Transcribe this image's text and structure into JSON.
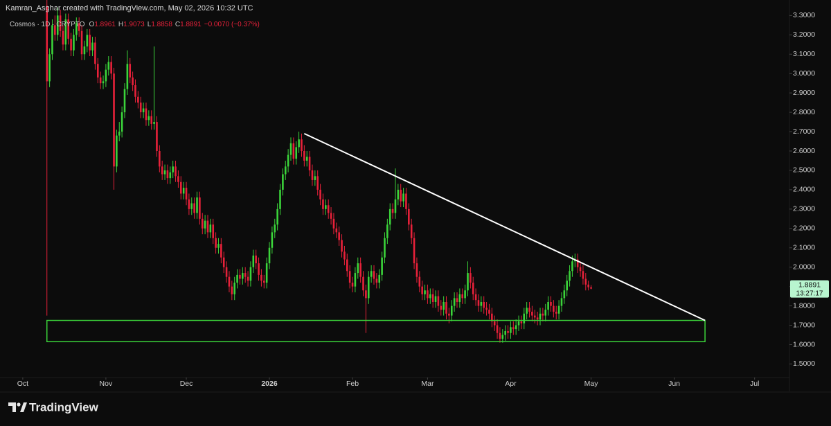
{
  "header": {
    "credit": "Kamran_Asghar created with TradingView.com, May 02, 2026 10:32 UTC"
  },
  "footer": {
    "brand": "TradingView"
  },
  "chart_data": {
    "type": "candlestick",
    "symbol": "Cosmos · 1D · CRYPTO",
    "ohlc_letters": [
      "O",
      "H",
      "L",
      "C"
    ],
    "change": "−0.0070 (−0.37%)",
    "countdown": "13:27:17",
    "up_color": "#3bd43a",
    "down_color": "#e8213a",
    "grid": false,
    "xlim": [
      -8.5,
      286
    ],
    "xticks": [
      {
        "value": 0,
        "label": "Oct"
      },
      {
        "value": 31,
        "label": "Nov"
      },
      {
        "value": 61,
        "label": "Dec"
      },
      {
        "value": 92,
        "label": "2026"
      },
      {
        "value": 123,
        "label": "Feb"
      },
      {
        "value": 151,
        "label": "Mar"
      },
      {
        "value": 182,
        "label": "Apr"
      },
      {
        "value": 212,
        "label": "May"
      },
      {
        "value": 243,
        "label": "Jun"
      },
      {
        "value": 273,
        "label": "Jul"
      }
    ],
    "ylim": [
      1.43,
      3.38
    ],
    "yticks": [
      {
        "value": 1.5,
        "label": "1.5000"
      },
      {
        "value": 1.6,
        "label": "1.6000"
      },
      {
        "value": 1.7,
        "label": "1.7000"
      },
      {
        "value": 1.8,
        "label": "1.8000"
      },
      {
        "value": 1.9,
        "label": "1.9000"
      },
      {
        "value": 2.0,
        "label": "2.0000"
      },
      {
        "value": 2.1,
        "label": "2.1000"
      },
      {
        "value": 2.2,
        "label": "2.2000"
      },
      {
        "value": 2.3,
        "label": "2.3000"
      },
      {
        "value": 2.4,
        "label": "2.4000"
      },
      {
        "value": 2.5,
        "label": "2.5000"
      },
      {
        "value": 2.6,
        "label": "2.6000"
      },
      {
        "value": 2.7,
        "label": "2.7000"
      },
      {
        "value": 2.8,
        "label": "2.8000"
      },
      {
        "value": 2.9,
        "label": "2.9000"
      },
      {
        "value": 3.0,
        "label": "3.0000"
      },
      {
        "value": 3.1,
        "label": "3.1000"
      },
      {
        "value": 3.2,
        "label": "3.2000"
      },
      {
        "value": 3.3,
        "label": "3.3000"
      }
    ],
    "trendline": {
      "color": "#ffffff",
      "x": [
        105,
        254.5
      ],
      "y": [
        2.69,
        1.725
      ]
    },
    "zone": {
      "color": "#3bd43a",
      "x": [
        9,
        254.5
      ],
      "y": [
        1.615,
        1.725
      ]
    },
    "x": [
      9,
      10,
      11,
      12,
      13,
      14,
      15,
      16,
      17,
      18,
      19,
      20,
      21,
      22,
      23,
      24,
      25,
      26,
      27,
      28,
      29,
      30,
      31,
      32,
      33,
      34,
      35,
      36,
      37,
      38,
      39,
      40,
      41,
      42,
      43,
      44,
      45,
      46,
      47,
      48,
      49,
      50,
      51,
      52,
      53,
      54,
      55,
      56,
      57,
      58,
      59,
      60,
      61,
      62,
      63,
      64,
      65,
      66,
      67,
      68,
      69,
      70,
      71,
      72,
      73,
      74,
      75,
      76,
      77,
      78,
      79,
      80,
      81,
      82,
      83,
      84,
      85,
      86,
      87,
      88,
      89,
      90,
      91,
      92,
      93,
      94,
      95,
      96,
      97,
      98,
      99,
      100,
      101,
      102,
      103,
      104,
      105,
      106,
      107,
      108,
      109,
      110,
      111,
      112,
      113,
      114,
      115,
      116,
      117,
      118,
      119,
      120,
      121,
      122,
      123,
      124,
      125,
      126,
      127,
      128,
      129,
      130,
      131,
      132,
      133,
      134,
      135,
      136,
      137,
      138,
      139,
      140,
      141,
      142,
      143,
      144,
      145,
      146,
      147,
      148,
      149,
      150,
      151,
      152,
      153,
      154,
      155,
      156,
      157,
      158,
      159,
      160,
      161,
      162,
      163,
      164,
      165,
      166,
      167,
      168,
      169,
      170,
      171,
      172,
      173,
      174,
      175,
      176,
      177,
      178,
      179,
      180,
      181,
      182,
      183,
      184,
      185,
      186,
      187,
      188,
      189,
      190,
      191,
      192,
      193,
      194,
      195,
      196,
      197,
      198,
      199,
      200,
      201,
      202,
      203,
      204,
      205,
      206,
      207,
      208,
      209,
      210,
      211,
      212
    ],
    "candles": [
      [
        3.35,
        3.38,
        1.75,
        2.96
      ],
      [
        2.96,
        3.13,
        2.93,
        3.1
      ],
      [
        3.1,
        3.28,
        3.07,
        3.25
      ],
      [
        3.25,
        3.3,
        3.17,
        3.2
      ],
      [
        3.2,
        3.34,
        3.17,
        3.3
      ],
      [
        3.3,
        3.33,
        3.19,
        3.22
      ],
      [
        3.22,
        3.25,
        3.12,
        3.15
      ],
      [
        3.15,
        3.31,
        3.12,
        3.28
      ],
      [
        3.28,
        3.31,
        3.15,
        3.18
      ],
      [
        3.18,
        3.21,
        3.09,
        3.12
      ],
      [
        3.12,
        3.23,
        3.09,
        3.2
      ],
      [
        3.2,
        3.29,
        3.17,
        3.26
      ],
      [
        3.26,
        3.29,
        3.19,
        3.22
      ],
      [
        3.22,
        3.25,
        3.07,
        3.1
      ],
      [
        3.1,
        3.17,
        3.07,
        3.14
      ],
      [
        3.14,
        3.23,
        3.11,
        3.2
      ],
      [
        3.2,
        3.23,
        3.09,
        3.12
      ],
      [
        3.12,
        3.19,
        3.09,
        3.16
      ],
      [
        3.16,
        3.19,
        3.02,
        3.05
      ],
      [
        3.05,
        3.08,
        2.95,
        2.98
      ],
      [
        2.98,
        3.01,
        2.92,
        2.95
      ],
      [
        2.95,
        2.99,
        2.92,
        2.96
      ],
      [
        2.96,
        3.05,
        2.93,
        3.02
      ],
      [
        3.02,
        3.09,
        2.99,
        3.06
      ],
      [
        3.06,
        3.09,
        2.97,
        3.0
      ],
      [
        3.0,
        3.03,
        2.4,
        2.52
      ],
      [
        2.52,
        2.71,
        2.49,
        2.68
      ],
      [
        2.68,
        2.75,
        2.65,
        2.7
      ],
      [
        2.7,
        2.83,
        2.67,
        2.8
      ],
      [
        2.8,
        2.95,
        2.77,
        2.92
      ],
      [
        2.92,
        3.12,
        2.89,
        3.05
      ],
      [
        3.05,
        3.08,
        2.95,
        2.98
      ],
      [
        2.98,
        3.01,
        2.91,
        2.94
      ],
      [
        2.94,
        2.97,
        2.85,
        2.88
      ],
      [
        2.88,
        2.91,
        2.82,
        2.85
      ],
      [
        2.85,
        2.88,
        2.77,
        2.8
      ],
      [
        2.8,
        2.85,
        2.77,
        2.82
      ],
      [
        2.82,
        2.85,
        2.73,
        2.76
      ],
      [
        2.76,
        2.81,
        2.73,
        2.78
      ],
      [
        2.78,
        2.81,
        2.71,
        2.74
      ],
      [
        2.74,
        3.14,
        2.71,
        2.75
      ],
      [
        2.75,
        2.78,
        2.57,
        2.6
      ],
      [
        2.6,
        2.63,
        2.49,
        2.52
      ],
      [
        2.52,
        2.55,
        2.45,
        2.48
      ],
      [
        2.48,
        2.53,
        2.45,
        2.5
      ],
      [
        2.5,
        2.53,
        2.43,
        2.46
      ],
      [
        2.46,
        2.52,
        2.43,
        2.49
      ],
      [
        2.49,
        2.55,
        2.46,
        2.52
      ],
      [
        2.52,
        2.55,
        2.44,
        2.47
      ],
      [
        2.47,
        2.5,
        2.41,
        2.44
      ],
      [
        2.44,
        2.47,
        2.35,
        2.38
      ],
      [
        2.38,
        2.44,
        2.35,
        2.41
      ],
      [
        2.41,
        2.44,
        2.32,
        2.35
      ],
      [
        2.35,
        2.38,
        2.27,
        2.3
      ],
      [
        2.3,
        2.36,
        2.27,
        2.33
      ],
      [
        2.33,
        2.36,
        2.25,
        2.28
      ],
      [
        2.28,
        2.39,
        2.25,
        2.36
      ],
      [
        2.36,
        2.39,
        2.22,
        2.25
      ],
      [
        2.25,
        2.28,
        2.17,
        2.2
      ],
      [
        2.2,
        2.27,
        2.17,
        2.24
      ],
      [
        2.24,
        2.27,
        2.15,
        2.18
      ],
      [
        2.18,
        2.25,
        2.15,
        2.22
      ],
      [
        2.22,
        2.25,
        2.12,
        2.15
      ],
      [
        2.15,
        2.18,
        2.07,
        2.1
      ],
      [
        2.1,
        2.15,
        2.07,
        2.12
      ],
      [
        2.12,
        2.15,
        2.02,
        2.05
      ],
      [
        2.05,
        2.08,
        1.97,
        2.0
      ],
      [
        2.0,
        2.03,
        1.92,
        1.95
      ],
      [
        1.95,
        1.98,
        1.87,
        1.9
      ],
      [
        1.9,
        1.93,
        1.83,
        1.86
      ],
      [
        1.86,
        1.95,
        1.83,
        1.92
      ],
      [
        1.92,
        1.99,
        1.89,
        1.96
      ],
      [
        1.96,
        1.99,
        1.91,
        1.94
      ],
      [
        1.94,
        2.0,
        1.91,
        1.97
      ],
      [
        1.97,
        2.0,
        1.92,
        1.95
      ],
      [
        1.95,
        1.98,
        1.9,
        1.93
      ],
      [
        1.93,
        2.03,
        1.9,
        2.0
      ],
      [
        2.0,
        2.09,
        1.97,
        2.06
      ],
      [
        2.06,
        2.09,
        1.99,
        2.02
      ],
      [
        2.02,
        2.05,
        1.93,
        1.96
      ],
      [
        1.96,
        1.99,
        1.9,
        1.93
      ],
      [
        1.93,
        1.96,
        1.89,
        1.92
      ],
      [
        1.92,
        2.05,
        1.89,
        2.02
      ],
      [
        2.02,
        2.13,
        1.99,
        2.1
      ],
      [
        2.1,
        2.21,
        2.07,
        2.18
      ],
      [
        2.18,
        2.25,
        2.15,
        2.22
      ],
      [
        2.22,
        2.33,
        2.19,
        2.3
      ],
      [
        2.3,
        2.43,
        2.27,
        2.4
      ],
      [
        2.4,
        2.51,
        2.37,
        2.48
      ],
      [
        2.48,
        2.55,
        2.45,
        2.52
      ],
      [
        2.52,
        2.61,
        2.49,
        2.58
      ],
      [
        2.58,
        2.67,
        2.55,
        2.64
      ],
      [
        2.64,
        2.67,
        2.53,
        2.56
      ],
      [
        2.56,
        2.65,
        2.53,
        2.62
      ],
      [
        2.62,
        2.7,
        2.59,
        2.66
      ],
      [
        2.66,
        2.69,
        2.57,
        2.6
      ],
      [
        2.6,
        2.63,
        2.52,
        2.55
      ],
      [
        2.55,
        2.6,
        2.52,
        2.57
      ],
      [
        2.57,
        2.6,
        2.47,
        2.5
      ],
      [
        2.5,
        2.53,
        2.42,
        2.45
      ],
      [
        2.45,
        2.5,
        2.42,
        2.47
      ],
      [
        2.47,
        2.5,
        2.37,
        2.4
      ],
      [
        2.4,
        2.43,
        2.32,
        2.35
      ],
      [
        2.35,
        2.38,
        2.27,
        2.3
      ],
      [
        2.3,
        2.35,
        2.27,
        2.32
      ],
      [
        2.32,
        2.35,
        2.25,
        2.28
      ],
      [
        2.28,
        2.31,
        2.22,
        2.25
      ],
      [
        2.25,
        2.28,
        2.17,
        2.2
      ],
      [
        2.2,
        2.23,
        2.15,
        2.18
      ],
      [
        2.18,
        2.21,
        2.11,
        2.14
      ],
      [
        2.14,
        2.17,
        2.05,
        2.08
      ],
      [
        2.08,
        2.11,
        2.01,
        2.04
      ],
      [
        2.04,
        2.07,
        1.95,
        1.98
      ],
      [
        1.98,
        2.01,
        1.89,
        1.92
      ],
      [
        1.92,
        1.95,
        1.87,
        1.9
      ],
      [
        1.9,
        2.0,
        1.87,
        1.97
      ],
      [
        1.97,
        2.05,
        1.94,
        2.02
      ],
      [
        2.02,
        2.05,
        1.92,
        1.95
      ],
      [
        1.95,
        1.98,
        1.85,
        1.88
      ],
      [
        1.88,
        1.91,
        1.66,
        1.84
      ],
      [
        1.84,
        1.98,
        1.81,
        1.95
      ],
      [
        1.95,
        2.01,
        1.92,
        1.98
      ],
      [
        1.98,
        2.01,
        1.91,
        1.94
      ],
      [
        1.94,
        1.97,
        1.89,
        1.92
      ],
      [
        1.92,
        1.99,
        1.89,
        1.96
      ],
      [
        1.96,
        2.08,
        1.93,
        2.05
      ],
      [
        2.05,
        2.18,
        2.02,
        2.15
      ],
      [
        2.15,
        2.25,
        2.12,
        2.22
      ],
      [
        2.22,
        2.33,
        2.19,
        2.3
      ],
      [
        2.3,
        2.33,
        2.25,
        2.28
      ],
      [
        2.28,
        2.51,
        2.25,
        2.35
      ],
      [
        2.35,
        2.43,
        2.32,
        2.4
      ],
      [
        2.4,
        2.43,
        2.31,
        2.34
      ],
      [
        2.34,
        2.41,
        2.31,
        2.38
      ],
      [
        2.38,
        2.41,
        2.27,
        2.3
      ],
      [
        2.3,
        2.33,
        2.19,
        2.22
      ],
      [
        2.22,
        2.25,
        2.12,
        2.15
      ],
      [
        2.15,
        2.18,
        1.99,
        2.02
      ],
      [
        2.02,
        2.05,
        1.92,
        1.95
      ],
      [
        1.95,
        1.98,
        1.87,
        1.9
      ],
      [
        1.9,
        1.93,
        1.83,
        1.86
      ],
      [
        1.86,
        1.91,
        1.83,
        1.88
      ],
      [
        1.88,
        1.91,
        1.81,
        1.84
      ],
      [
        1.84,
        1.89,
        1.81,
        1.86
      ],
      [
        1.86,
        1.89,
        1.79,
        1.82
      ],
      [
        1.82,
        1.88,
        1.79,
        1.85
      ],
      [
        1.85,
        1.88,
        1.77,
        1.8
      ],
      [
        1.8,
        1.83,
        1.75,
        1.78
      ],
      [
        1.78,
        1.85,
        1.75,
        1.82
      ],
      [
        1.82,
        1.85,
        1.73,
        1.76
      ],
      [
        1.76,
        1.79,
        1.71,
        1.75
      ],
      [
        1.75,
        1.83,
        1.72,
        1.8
      ],
      [
        1.8,
        1.87,
        1.77,
        1.84
      ],
      [
        1.84,
        1.87,
        1.79,
        1.82
      ],
      [
        1.82,
        1.89,
        1.79,
        1.86
      ],
      [
        1.86,
        1.89,
        1.81,
        1.84
      ],
      [
        1.84,
        1.91,
        1.81,
        1.88
      ],
      [
        1.88,
        2.03,
        1.85,
        1.97
      ],
      [
        1.97,
        2.0,
        1.89,
        1.92
      ],
      [
        1.92,
        1.95,
        1.83,
        1.86
      ],
      [
        1.86,
        1.89,
        1.8,
        1.83
      ],
      [
        1.83,
        1.86,
        1.77,
        1.8
      ],
      [
        1.8,
        1.85,
        1.77,
        1.82
      ],
      [
        1.82,
        1.85,
        1.76,
        1.79
      ],
      [
        1.79,
        1.82,
        1.75,
        1.78
      ],
      [
        1.78,
        1.81,
        1.73,
        1.76
      ],
      [
        1.76,
        1.79,
        1.69,
        1.72
      ],
      [
        1.72,
        1.75,
        1.67,
        1.7
      ],
      [
        1.7,
        1.73,
        1.63,
        1.66
      ],
      [
        1.66,
        1.69,
        1.61,
        1.63
      ],
      [
        1.63,
        1.68,
        1.61,
        1.65
      ],
      [
        1.65,
        1.7,
        1.62,
        1.67
      ],
      [
        1.67,
        1.7,
        1.63,
        1.66
      ],
      [
        1.66,
        1.72,
        1.63,
        1.69
      ],
      [
        1.69,
        1.72,
        1.65,
        1.68
      ],
      [
        1.68,
        1.73,
        1.65,
        1.7
      ],
      [
        1.7,
        1.75,
        1.67,
        1.72
      ],
      [
        1.72,
        1.75,
        1.68,
        1.71
      ],
      [
        1.71,
        1.79,
        1.68,
        1.76
      ],
      [
        1.76,
        1.82,
        1.73,
        1.79
      ],
      [
        1.79,
        1.82,
        1.74,
        1.77
      ],
      [
        1.77,
        1.8,
        1.72,
        1.75
      ],
      [
        1.75,
        1.78,
        1.71,
        1.74
      ],
      [
        1.74,
        1.77,
        1.7,
        1.73
      ],
      [
        1.73,
        1.79,
        1.7,
        1.76
      ],
      [
        1.76,
        1.79,
        1.72,
        1.75
      ],
      [
        1.75,
        1.81,
        1.72,
        1.78
      ],
      [
        1.78,
        1.85,
        1.75,
        1.82
      ],
      [
        1.82,
        1.85,
        1.77,
        1.8
      ],
      [
        1.8,
        1.83,
        1.74,
        1.77
      ],
      [
        1.77,
        1.8,
        1.73,
        1.76
      ],
      [
        1.76,
        1.83,
        1.73,
        1.8
      ],
      [
        1.8,
        1.87,
        1.77,
        1.84
      ],
      [
        1.84,
        1.91,
        1.81,
        1.88
      ],
      [
        1.88,
        1.96,
        1.85,
        1.93
      ],
      [
        1.93,
        2.01,
        1.9,
        1.98
      ],
      [
        1.98,
        2.06,
        1.95,
        2.03
      ],
      [
        2.03,
        2.07,
        2.0,
        2.04
      ],
      [
        2.04,
        2.07,
        1.97,
        2.0
      ],
      [
        2.0,
        2.03,
        1.95,
        1.98
      ],
      [
        1.98,
        2.01,
        1.91,
        1.94
      ],
      [
        1.94,
        1.97,
        1.88,
        1.91
      ],
      [
        1.91,
        1.93,
        1.88,
        1.8961
      ],
      [
        1.8961,
        1.9073,
        1.8858,
        1.8891
      ]
    ]
  }
}
